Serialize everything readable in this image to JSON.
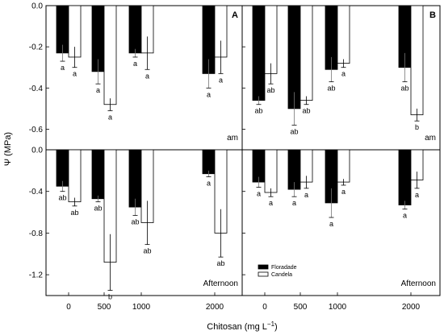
{
  "chart_data": {
    "type": "bar",
    "ylabel": "Ψ (MPa)",
    "xlabel": "Chitosan (mg L",
    "xlabel_sup": "−1",
    "xlabel_close": ")",
    "categories": [
      "0",
      "500",
      "1000",
      "2000"
    ],
    "legend": [
      {
        "name": "Floradade",
        "color": "#000000"
      },
      {
        "name": "Candela",
        "color": "#ffffff"
      }
    ],
    "panels": [
      {
        "letter": "A",
        "period": "am",
        "ylim": [
          -0.7,
          0
        ],
        "yticks": [
          "0.0",
          "-0.2",
          "-0.4",
          "-0.6"
        ],
        "ytick_values": [
          0,
          -0.2,
          -0.4,
          -0.6
        ],
        "series": [
          {
            "name": "Floradade",
            "values": [
              -0.23,
              -0.32,
              -0.23,
              -0.33
            ],
            "errors": [
              0.04,
              0.06,
              0.02,
              0.07
            ],
            "letters": [
              "a",
              "a",
              "a",
              "a"
            ]
          },
          {
            "name": "Candela",
            "values": [
              -0.25,
              -0.48,
              -0.23,
              -0.25
            ],
            "errors": [
              0.05,
              0.03,
              0.08,
              0.08
            ],
            "letters": [
              "a",
              "a",
              "a",
              "a"
            ]
          }
        ]
      },
      {
        "letter": "B",
        "period": "am",
        "ylim": [
          -0.7,
          0
        ],
        "yticks": [],
        "ytick_values": [
          0,
          -0.2,
          -0.4,
          -0.6
        ],
        "series": [
          {
            "name": "Floradade",
            "values": [
              -0.46,
              -0.5,
              -0.31,
              -0.3
            ],
            "errors": [
              0.02,
              0.08,
              0.06,
              0.07
            ],
            "letters": [
              "ab",
              "ab",
              "ab",
              "ab"
            ]
          },
          {
            "name": "Candela",
            "values": [
              -0.33,
              -0.46,
              -0.28,
              -0.53
            ],
            "errors": [
              0.05,
              0.02,
              0.02,
              0.03
            ],
            "letters": [
              "ab",
              "ab",
              "a",
              "b"
            ]
          }
        ]
      },
      {
        "letter": "",
        "period": "Afternoon",
        "ylim": [
          -1.4,
          0
        ],
        "yticks": [
          "0.0",
          "-0.4",
          "-0.8",
          "-1.2"
        ],
        "ytick_values": [
          0,
          -0.4,
          -0.8,
          -1.2
        ],
        "series": [
          {
            "name": "Floradade",
            "values": [
              -0.35,
              -0.47,
              -0.55,
              -0.23
            ],
            "errors": [
              0.05,
              0.03,
              0.08,
              0.03
            ],
            "letters": [
              "ab",
              "ab",
              "ab",
              "a"
            ]
          },
          {
            "name": "Candela",
            "values": [
              -0.5,
              -1.08,
              -0.7,
              -0.8
            ],
            "errors": [
              0.04,
              0.27,
              0.21,
              0.23
            ],
            "letters": [
              "ab",
              "b",
              "ab",
              "ab"
            ]
          }
        ]
      },
      {
        "letter": "",
        "period": "Afternoon",
        "ylim": [
          -1.4,
          0
        ],
        "yticks": [],
        "ytick_values": [
          0,
          -0.4,
          -0.8,
          -1.2
        ],
        "series": [
          {
            "name": "Floradade",
            "values": [
              -0.31,
              -0.38,
              -0.51,
              -0.53
            ],
            "errors": [
              0.05,
              0.07,
              0.14,
              0.04
            ],
            "letters": [
              "a",
              "a",
              "a",
              "a"
            ]
          },
          {
            "name": "Candela",
            "values": [
              -0.41,
              -0.31,
              -0.31,
              -0.29
            ],
            "errors": [
              0.04,
              0.06,
              0.03,
              0.08
            ],
            "letters": [
              "a",
              "a",
              "a",
              "a"
            ]
          }
        ]
      }
    ]
  }
}
